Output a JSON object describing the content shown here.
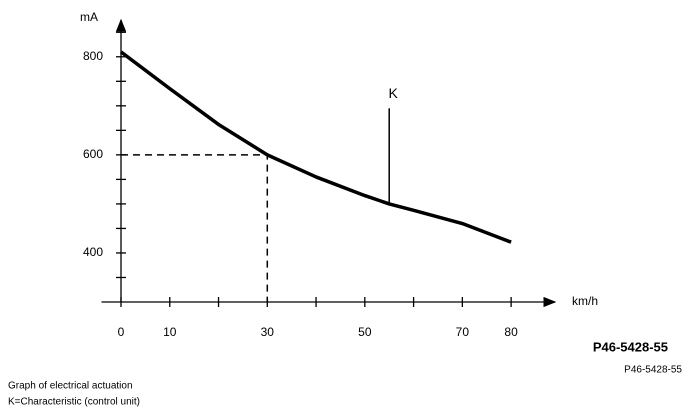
{
  "chart_data": {
    "type": "line",
    "y_label": "mA",
    "x_label": "km/h",
    "x": [
      0,
      10,
      20,
      30,
      40,
      50,
      55,
      60,
      70,
      80
    ],
    "series": [
      {
        "color": "#000000",
        "values": [
          810,
          735,
          662,
          600,
          555,
          517,
          500,
          487,
          460,
          422
        ]
      }
    ],
    "xlim": [
      -4,
      89
    ],
    "ylim": [
      300,
      875
    ],
    "xticks": [
      0,
      10,
      30,
      50,
      70,
      80
    ],
    "xminor_ticks": [
      20,
      40,
      60
    ],
    "yticks": [
      400,
      600,
      800
    ],
    "yminor_ticks": [
      350,
      450,
      500,
      550,
      650,
      700,
      750,
      850
    ],
    "guide": {
      "x": 30,
      "y": 600
    },
    "annotation": {
      "label": "K",
      "x": 55,
      "y": [
        500,
        695
      ]
    },
    "figure_code": "P46-5428-55",
    "caption_code": "P46-5428-55",
    "caption": [
      "Graph of electrical actuation",
      "K=Characteristic (control unit)"
    ]
  }
}
